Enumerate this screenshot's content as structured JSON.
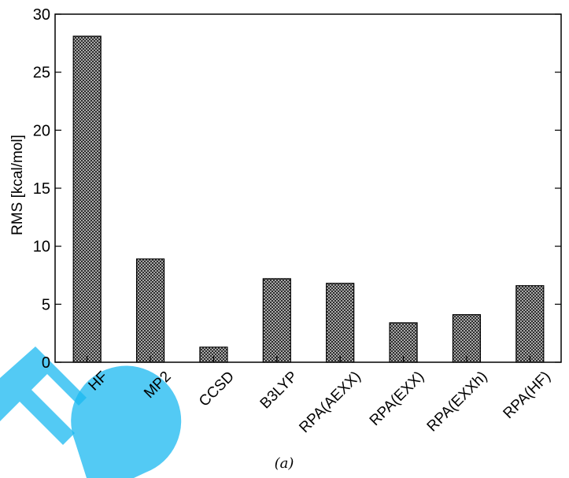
{
  "chart_data": {
    "type": "bar",
    "categories": [
      "HF",
      "MP2",
      "CCSD",
      "B3LYP",
      "RPA(AEXX)",
      "RPA(EXX)",
      "RPA(EXXh)",
      "RPA(HF)"
    ],
    "values": [
      28.1,
      8.9,
      1.3,
      7.2,
      6.8,
      3.4,
      4.1,
      6.6
    ],
    "ylabel": "RMS [kcal/mol]",
    "ylim": [
      0,
      30
    ],
    "yticks": [
      0,
      5,
      10,
      15,
      20,
      25,
      30
    ],
    "grid": false,
    "bar_fill": "crosshatch",
    "caption": "(a)"
  },
  "colors": {
    "bar_fill": "#9a9a9a",
    "axis": "#000000",
    "watermark": "#1ab8f0"
  }
}
